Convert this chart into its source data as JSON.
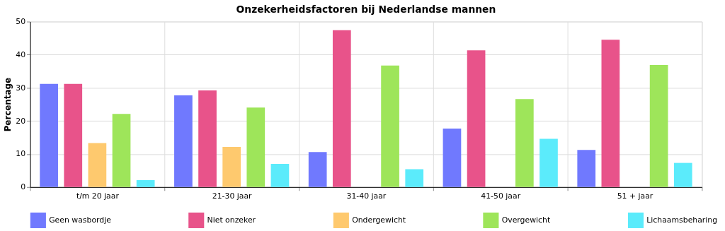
{
  "chart_data": {
    "type": "bar",
    "title": "Onzekerheidsfactoren bij Nederlandse mannen",
    "ylabel": "Percentage",
    "categories": [
      "t/m 20 jaar",
      "21-30 jaar",
      "31-40 jaar",
      "41-50 jaar",
      "51 + jaar"
    ],
    "series": [
      {
        "name": "Geen wasbordje",
        "color": "#7079fe",
        "values": [
          31.2,
          27.7,
          10.6,
          17.7,
          11.2
        ]
      },
      {
        "name": "Niet onzeker",
        "color": "#e8538a",
        "values": [
          31.2,
          29.2,
          47.4,
          41.3,
          44.5
        ]
      },
      {
        "name": "Ondergewicht",
        "color": "#fec96e",
        "values": [
          13.3,
          12.1,
          null,
          null,
          null
        ]
      },
      {
        "name": "Overgewicht",
        "color": "#9ee55a",
        "values": [
          22.1,
          24.0,
          36.7,
          26.6,
          36.9
        ]
      },
      {
        "name": "Lichaamsbeharing",
        "color": "#5bebfb",
        "values": [
          2.1,
          7.0,
          5.4,
          14.6,
          7.3
        ]
      }
    ],
    "ylim": [
      0,
      50
    ],
    "yticks": [
      0,
      10,
      20,
      30,
      40,
      50
    ],
    "grid": true,
    "legend": "bottom"
  }
}
